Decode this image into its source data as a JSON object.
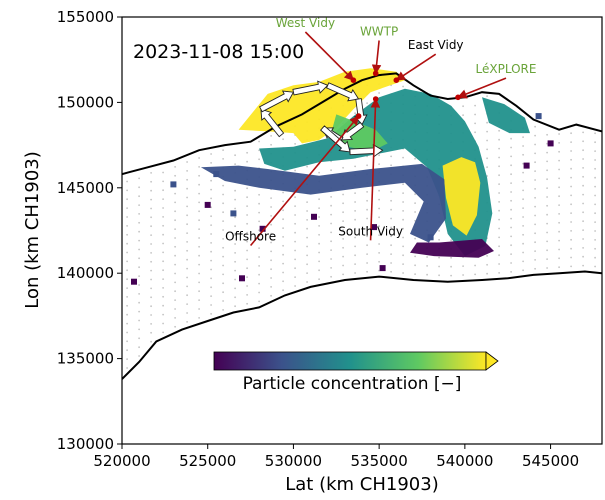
{
  "chart_data": {
    "type": "heatmap",
    "title": "",
    "timestamp": "2023-11-08 15:00",
    "xlabel": "Lat (km CH1903)",
    "ylabel": "Lon (km CH1903)",
    "xlim": [
      520000,
      548000
    ],
    "ylim": [
      130000,
      155000
    ],
    "xticks": [
      "520000",
      "525000",
      "530000",
      "535000",
      "540000",
      "545000"
    ],
    "xtick_values": [
      520000,
      525000,
      530000,
      535000,
      540000,
      545000
    ],
    "yticks": [
      "130000",
      "135000",
      "140000",
      "145000",
      "150000",
      "155000"
    ],
    "ytick_values": [
      130000,
      135000,
      140000,
      145000,
      150000,
      155000
    ],
    "colorbar": {
      "label": "Particle concentration [−]",
      "colormap": "viridis",
      "colors": [
        "#440154",
        "#3b528b",
        "#21918c",
        "#5ec962",
        "#fde725"
      ]
    },
    "north_shore": [
      [
        520000,
        145800
      ],
      [
        521500,
        146200
      ],
      [
        523000,
        146600
      ],
      [
        524500,
        147200
      ],
      [
        526000,
        147500
      ],
      [
        527500,
        147700
      ],
      [
        529000,
        148600
      ],
      [
        530500,
        149300
      ],
      [
        532000,
        150200
      ],
      [
        533000,
        150800
      ],
      [
        534000,
        151300
      ],
      [
        535000,
        151600
      ],
      [
        536000,
        151700
      ],
      [
        537000,
        151000
      ],
      [
        538000,
        150400
      ],
      [
        539000,
        150200
      ],
      [
        540000,
        150300
      ],
      [
        541000,
        150600
      ],
      [
        542000,
        150500
      ],
      [
        543000,
        149800
      ],
      [
        544000,
        149000
      ],
      [
        545500,
        148400
      ],
      [
        546500,
        148700
      ],
      [
        548000,
        148300
      ]
    ],
    "south_shore": [
      [
        520000,
        133800
      ],
      [
        521000,
        134800
      ],
      [
        522000,
        136000
      ],
      [
        523500,
        136700
      ],
      [
        525000,
        137200
      ],
      [
        526500,
        137700
      ],
      [
        528000,
        138000
      ],
      [
        529500,
        138700
      ],
      [
        531000,
        139200
      ],
      [
        533000,
        139600
      ],
      [
        535000,
        139800
      ],
      [
        537000,
        139600
      ],
      [
        539000,
        139500
      ],
      [
        541000,
        139600
      ],
      [
        542500,
        139700
      ],
      [
        544000,
        139900
      ],
      [
        545500,
        140000
      ],
      [
        547000,
        140100
      ],
      [
        548000,
        140000
      ]
    ],
    "regions": [
      {
        "level": 4,
        "points": [
          [
            526800,
            148400
          ],
          [
            528500,
            150500
          ],
          [
            530000,
            151000
          ],
          [
            531500,
            151200
          ],
          [
            533000,
            151800
          ],
          [
            534500,
            152000
          ],
          [
            536000,
            151800
          ],
          [
            536500,
            151300
          ],
          [
            534500,
            150600
          ],
          [
            533500,
            149600
          ],
          [
            532500,
            148500
          ],
          [
            531500,
            147800
          ],
          [
            530500,
            147600
          ],
          [
            530000,
            148200
          ],
          [
            528500,
            148300
          ]
        ]
      },
      {
        "level": 2.2,
        "points": [
          [
            528000,
            147300
          ],
          [
            530000,
            147400
          ],
          [
            532000,
            147900
          ],
          [
            533500,
            149200
          ],
          [
            535000,
            150300
          ],
          [
            536500,
            150800
          ],
          [
            538000,
            150500
          ],
          [
            539200,
            149800
          ],
          [
            540000,
            148900
          ],
          [
            540800,
            147400
          ],
          [
            541300,
            145600
          ],
          [
            541600,
            143500
          ],
          [
            541200,
            141600
          ],
          [
            540000,
            141000
          ],
          [
            539000,
            142300
          ],
          [
            538500,
            144500
          ],
          [
            537800,
            146200
          ],
          [
            536500,
            147300
          ],
          [
            535000,
            147000
          ],
          [
            533500,
            146700
          ],
          [
            531500,
            146500
          ],
          [
            529500,
            146000
          ],
          [
            528300,
            146400
          ]
        ]
      },
      {
        "level": 4,
        "points": [
          [
            538700,
            146300
          ],
          [
            539800,
            146800
          ],
          [
            540600,
            146500
          ],
          [
            540900,
            145300
          ],
          [
            540700,
            143400
          ],
          [
            540100,
            142200
          ],
          [
            539300,
            142800
          ],
          [
            538900,
            144400
          ]
        ]
      },
      {
        "level": 3.2,
        "points": [
          [
            532500,
            149300
          ],
          [
            533800,
            148800
          ],
          [
            534800,
            148400
          ],
          [
            535500,
            147600
          ],
          [
            534500,
            147100
          ],
          [
            533200,
            147400
          ],
          [
            532200,
            148200
          ]
        ]
      },
      {
        "level": 0.7,
        "points": [
          [
            524600,
            146200
          ],
          [
            526800,
            146300
          ],
          [
            528500,
            146100
          ],
          [
            531500,
            145700
          ],
          [
            534500,
            146100
          ],
          [
            537500,
            146400
          ],
          [
            538800,
            145500
          ],
          [
            538900,
            143200
          ],
          [
            537900,
            141800
          ],
          [
            536800,
            142300
          ],
          [
            537600,
            144200
          ],
          [
            536500,
            145300
          ],
          [
            534000,
            145000
          ],
          [
            531000,
            144600
          ],
          [
            528000,
            145000
          ],
          [
            526000,
            145400
          ]
        ]
      },
      {
        "level": 1.5,
        "points": [
          [
            541000,
            150300
          ],
          [
            542300,
            149900
          ],
          [
            543500,
            149100
          ],
          [
            543800,
            148200
          ],
          [
            542600,
            148200
          ],
          [
            541400,
            148800
          ]
        ]
      },
      {
        "level": 0.4,
        "points": [
          [
            536800,
            141200
          ],
          [
            538200,
            141000
          ],
          [
            540800,
            140900
          ],
          [
            541700,
            141300
          ],
          [
            541000,
            142000
          ],
          [
            538500,
            141800
          ],
          [
            537200,
            141800
          ]
        ]
      }
    ],
    "scatter_cells": [
      {
        "x": 525000,
        "y": 144000,
        "level": 0.3
      },
      {
        "x": 526500,
        "y": 143500,
        "level": 0.5
      },
      {
        "x": 523000,
        "y": 145200,
        "level": 0.6
      },
      {
        "x": 525500,
        "y": 145800,
        "level": 1.2
      },
      {
        "x": 520700,
        "y": 139500,
        "level": 0.2
      },
      {
        "x": 528200,
        "y": 142600,
        "level": 0.2
      },
      {
        "x": 527000,
        "y": 139700,
        "level": 0.3
      },
      {
        "x": 535200,
        "y": 140300,
        "level": 0.4
      },
      {
        "x": 538000,
        "y": 142100,
        "level": 0.8
      },
      {
        "x": 531200,
        "y": 143300,
        "level": 0.4
      },
      {
        "x": 534700,
        "y": 142700,
        "level": 0.3
      },
      {
        "x": 544300,
        "y": 149200,
        "level": 0.6
      },
      {
        "x": 543600,
        "y": 146300,
        "level": 0.2
      },
      {
        "x": 545000,
        "y": 147600,
        "level": 0.4
      }
    ],
    "trajectory": [
      [
        529300,
        148100
      ],
      [
        528100,
        149600
      ],
      [
        530000,
        150600
      ],
      [
        532000,
        151000
      ],
      [
        533800,
        150200
      ],
      [
        534000,
        148700
      ],
      [
        532800,
        147800
      ],
      [
        531700,
        148500
      ],
      [
        533300,
        147100
      ],
      [
        535200,
        147200
      ]
    ],
    "sites": [
      {
        "name": "West Vidy",
        "color": "green",
        "x": 533500,
        "y": 151300,
        "label_x": 530700,
        "label_y": 154300
      },
      {
        "name": "WWTP",
        "color": "green",
        "x": 534800,
        "y": 151700,
        "label_x": 535000,
        "label_y": 153800
      },
      {
        "name": "East Vidy",
        "color": "black",
        "x": 536000,
        "y": 151300,
        "label_x": 538300,
        "label_y": 153000
      },
      {
        "name": "LéXPLORE",
        "color": "green",
        "x": 539600,
        "y": 150300,
        "label_x": 542400,
        "label_y": 151600
      },
      {
        "name": "Offshore",
        "color": "black",
        "x": 533800,
        "y": 149200,
        "label_x": 527500,
        "label_y": 141800
      },
      {
        "name": "South Vidy",
        "color": "black",
        "x": 534800,
        "y": 150200,
        "label_x": 534500,
        "label_y": 142100
      }
    ]
  }
}
